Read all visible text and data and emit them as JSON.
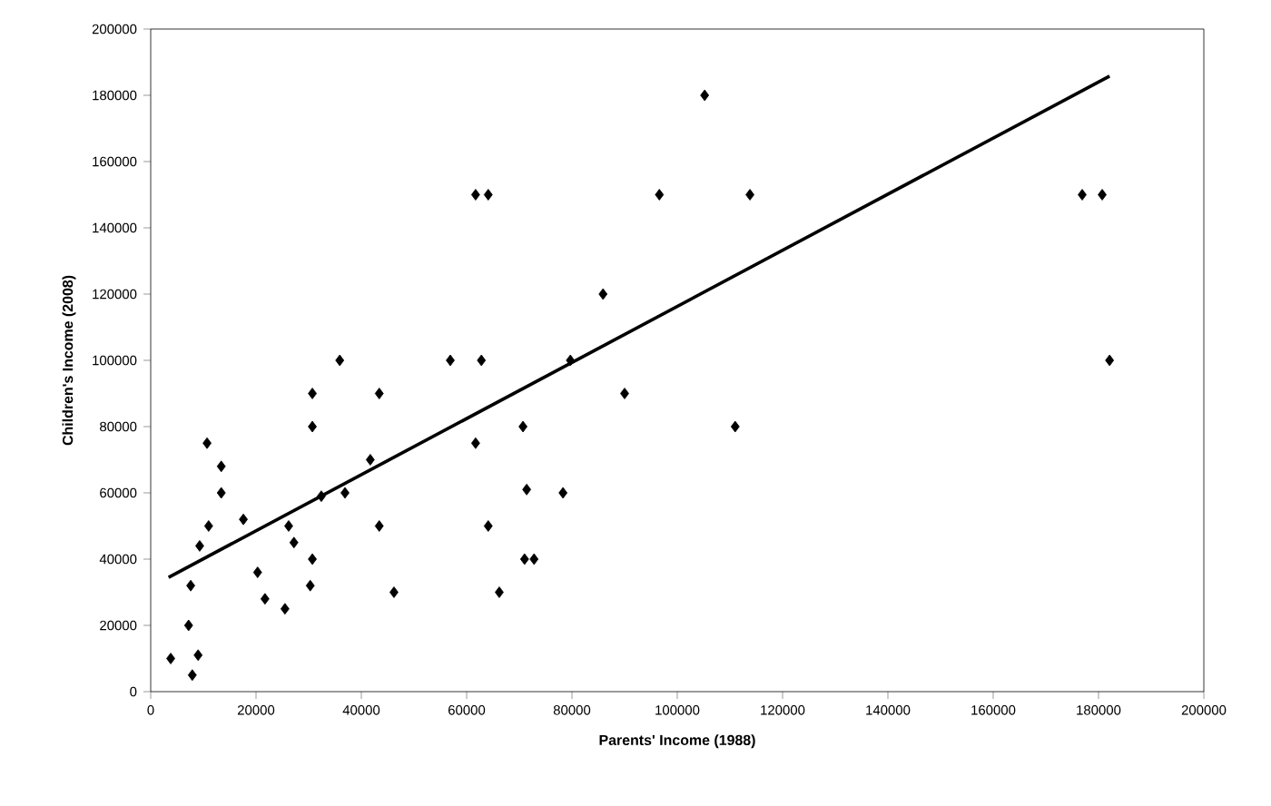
{
  "chart_data": {
    "type": "scatter",
    "xlabel": "Parents' Income (1988)",
    "ylabel": "Children's Income (2008)",
    "xlim": [
      0,
      200000
    ],
    "ylim": [
      0,
      200000
    ],
    "xticks": [
      0,
      20000,
      40000,
      60000,
      80000,
      100000,
      120000,
      140000,
      160000,
      180000,
      200000
    ],
    "yticks": [
      0,
      20000,
      40000,
      60000,
      80000,
      100000,
      120000,
      140000,
      160000,
      180000,
      200000
    ],
    "grid": false,
    "series": [
      {
        "color": "#000000",
        "marker": "diamond",
        "x": [
          3800,
          7200,
          7600,
          7900,
          9000,
          9300,
          10700,
          11000,
          13400,
          13400,
          17600,
          20300,
          21700,
          25500,
          26200,
          27200,
          30300,
          30700,
          30700,
          30700,
          32400,
          35900,
          36900,
          41700,
          43400,
          43400,
          46200,
          56900,
          61700,
          61700,
          62800,
          64100,
          64100,
          66200,
          70700,
          71000,
          71400,
          72800,
          78300,
          79700,
          85900,
          90000,
          96600,
          105200,
          111000,
          113800,
          176900,
          180700,
          182100
        ],
        "values": [
          10000,
          20000,
          32000,
          5000,
          11000,
          44000,
          75000,
          50000,
          60000,
          68000,
          52000,
          36000,
          28000,
          25000,
          50000,
          45000,
          32000,
          40000,
          80000,
          90000,
          59000,
          100000,
          60000,
          70000,
          90000,
          50000,
          30000,
          100000,
          75000,
          150000,
          100000,
          150000,
          50000,
          30000,
          80000,
          40000,
          61000,
          40000,
          60000,
          100000,
          120000,
          90000,
          150000,
          180000,
          80000,
          150000,
          150000,
          150000,
          100000
        ]
      },
      {
        "type": "line",
        "color": "#000000",
        "marker": "none",
        "line_style": "solid",
        "x": [
          3400,
          182100
        ],
        "values": [
          34500,
          185800
        ]
      }
    ]
  }
}
